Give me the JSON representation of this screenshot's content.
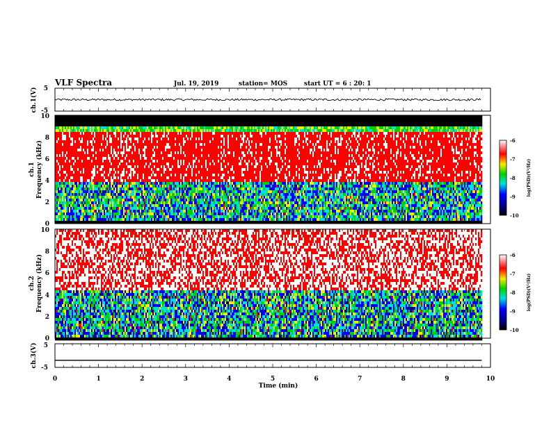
{
  "header": {
    "title": "VLF Spectra",
    "date": "Jul. 19, 2019",
    "station": "station= MOS",
    "start": "start UT = 6 : 20: 1"
  },
  "chart_data": [
    {
      "type": "line",
      "name": "ch1-waveform",
      "ylabel": "ch.1(V)",
      "xlim": [
        0,
        10
      ],
      "ylim": [
        -5,
        5
      ],
      "yticks": [
        "5",
        "-5"
      ],
      "x": [
        0,
        9.8
      ],
      "y": [
        0.0,
        0.0
      ]
    },
    {
      "type": "heatmap",
      "name": "ch1-spectrogram",
      "ylabel_top": "ch.1",
      "ylabel": "Frequency (kHz)",
      "xlim": [
        0,
        10
      ],
      "ylim": [
        0,
        10
      ],
      "yticks": [
        "0",
        "2",
        "4",
        "6",
        "8",
        "10"
      ],
      "data_extent_min": [
        0,
        9.8
      ],
      "colorbar": {
        "label": "log(PSD)(V²/Hz)",
        "range": [
          -10,
          -6
        ],
        "ticks": [
          "-6",
          "-7",
          "-8",
          "-9",
          "-10"
        ]
      }
    },
    {
      "type": "heatmap",
      "name": "ch2-spectrogram",
      "ylabel_top": "ch.2",
      "ylabel": "Frequency (kHz)",
      "xlim": [
        0,
        10
      ],
      "ylim": [
        0,
        10
      ],
      "yticks": [
        "0",
        "2",
        "4",
        "6",
        "8",
        "10"
      ],
      "data_extent_min": [
        0,
        9.8
      ],
      "colorbar": {
        "label": "log(PSD)(V²/Hz)",
        "range": [
          -10,
          -6
        ],
        "ticks": [
          "-6",
          "-7",
          "-8",
          "-9",
          "-10"
        ]
      }
    },
    {
      "type": "line",
      "name": "ch3-waveform",
      "ylabel": "ch.3(V)",
      "xlim": [
        0,
        10
      ],
      "ylim": [
        -5,
        5
      ],
      "yticks": [
        "5",
        "-5"
      ],
      "x": [
        0,
        9.8
      ],
      "y": [
        -2.0,
        -2.0
      ]
    }
  ],
  "xaxis": {
    "label": "Time (min)",
    "ticks": [
      "0",
      "1",
      "2",
      "3",
      "4",
      "5",
      "6",
      "7",
      "8",
      "9",
      "10"
    ]
  },
  "colors": {
    "black": "#000000",
    "navy": "#000080",
    "blue": "#0000ff",
    "cyan": "#00e0e0",
    "green": "#00d000",
    "yellow": "#f0f000",
    "red": "#ff0000",
    "white": "#ffffff"
  }
}
